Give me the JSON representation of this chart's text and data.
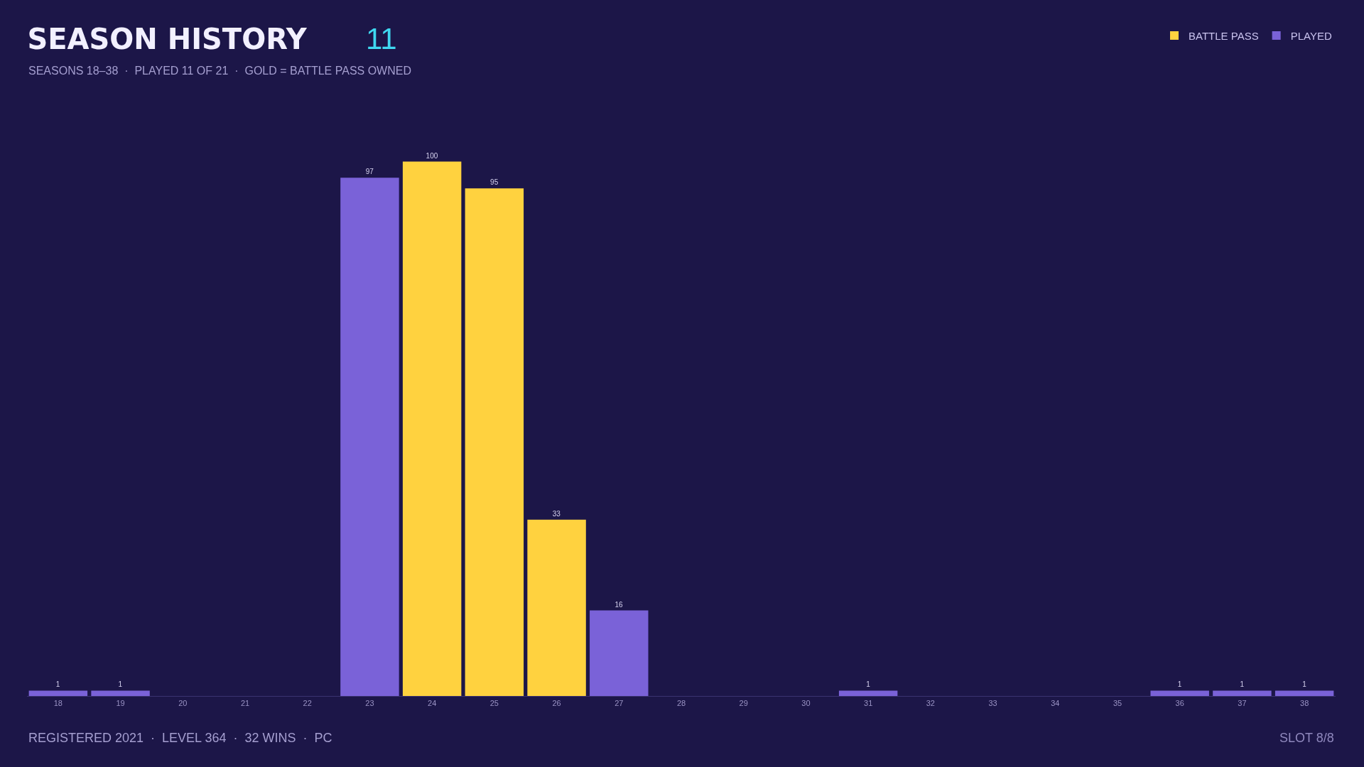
{
  "chart_data": {
    "type": "bar",
    "title": "SEASON HISTORY",
    "subtitle": "SEASONS 18–38  ·  PLAYED 11 OF 21  ·  GOLD = BATTLE PASS OWNED",
    "annotations": [
      "11",
      "REGISTERED 2021  ·  LEVEL 364  ·  32 WINS  ·  PC",
      "SLOT 8/8"
    ],
    "categories": [
      "18",
      "19",
      "20",
      "21",
      "22",
      "23",
      "24",
      "25",
      "26",
      "27",
      "28",
      "29",
      "30",
      "31",
      "32",
      "33",
      "34",
      "35",
      "36",
      "37",
      "38"
    ],
    "series": [
      {
        "name": "BATTLE PASS",
        "color": "#ffd23f",
        "values": [
          null,
          null,
          null,
          null,
          null,
          null,
          100,
          95,
          33,
          null,
          null,
          null,
          null,
          null,
          null,
          null,
          null,
          null,
          null,
          null,
          null
        ]
      },
      {
        "name": "PLAYED",
        "color": "#7a62d8",
        "values": [
          1,
          1,
          null,
          null,
          null,
          97,
          null,
          null,
          null,
          16,
          null,
          null,
          null,
          1,
          null,
          null,
          null,
          null,
          1,
          1,
          1
        ]
      }
    ],
    "data_labels": true,
    "legend": "top right",
    "grid": false
  }
}
